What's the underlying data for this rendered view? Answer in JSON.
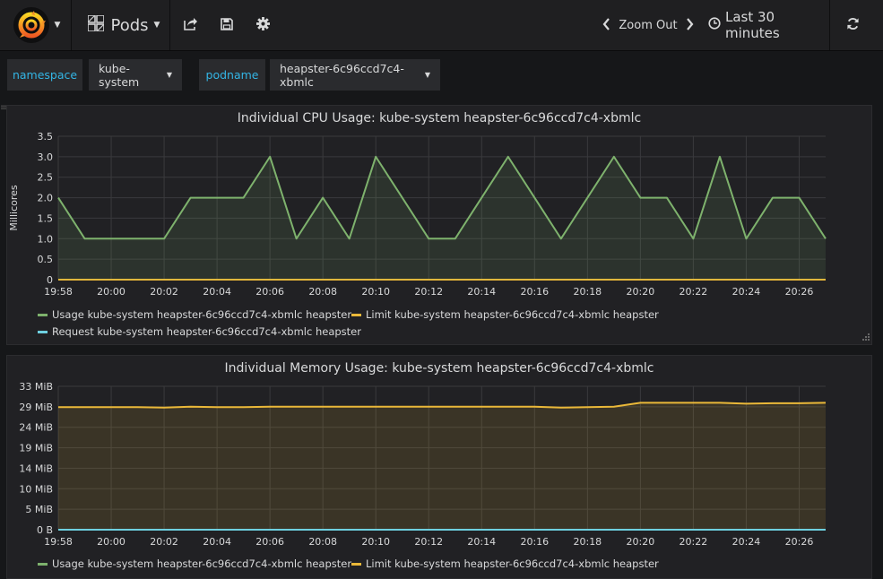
{
  "navbar": {
    "dashboard_title": "Pods",
    "zoom_out_label": "Zoom Out",
    "time_range_label": "Last 30 minutes"
  },
  "icons": {
    "logo": "grafana-logo-icon",
    "dashboard": "grid-icon",
    "share": "share-icon",
    "save": "save-icon",
    "settings": "gear-icon",
    "zoom_prev": "chevron-left-icon",
    "zoom_next": "chevron-right-icon",
    "time": "clock-icon",
    "refresh": "refresh-icon"
  },
  "variables": [
    {
      "label": "namespace",
      "value": "kube-system"
    },
    {
      "label": "podname",
      "value": "heapster-6c96ccd7c4-xbmlc"
    }
  ],
  "colors": {
    "usage": "#7eb26d",
    "limit": "#eab839",
    "request": "#6ed0e0",
    "variable_label": "#33b5e5"
  },
  "panels": [
    {
      "title": "Individual CPU Usage: kube-system heapster-6c96ccd7c4-xbmlc"
    },
    {
      "title": "Individual Memory Usage: kube-system heapster-6c96ccd7c4-xbmlc"
    }
  ],
  "chart_data": [
    {
      "type": "line",
      "title": "Individual CPU Usage: kube-system heapster-6c96ccd7c4-xbmlc",
      "ylabel": "Millicores",
      "xlabel": "",
      "ylim": [
        0,
        3.5
      ],
      "yticks": [
        "0",
        "0.5",
        "1.0",
        "1.5",
        "2.0",
        "2.5",
        "3.0",
        "3.5"
      ],
      "xticks": [
        "19:58",
        "20:00",
        "20:02",
        "20:04",
        "20:06",
        "20:08",
        "20:10",
        "20:12",
        "20:14",
        "20:16",
        "20:18",
        "20:20",
        "20:22",
        "20:24",
        "20:26"
      ],
      "x": [
        "19:58",
        "19:59",
        "20:00",
        "20:01",
        "20:02",
        "20:03",
        "20:04",
        "20:05",
        "20:06",
        "20:07",
        "20:08",
        "20:09",
        "20:10",
        "20:11",
        "20:12",
        "20:13",
        "20:14",
        "20:15",
        "20:16",
        "20:17",
        "20:18",
        "20:19",
        "20:20",
        "20:21",
        "20:22",
        "20:23",
        "20:24",
        "20:25",
        "20:26",
        "20:27"
      ],
      "grid": true,
      "legend_position": "bottom",
      "series": [
        {
          "name": "Usage kube-system heapster-6c96ccd7c4-xbmlc heapster",
          "values": [
            2,
            1,
            1,
            1,
            1,
            2,
            2,
            2,
            3,
            1,
            2,
            1,
            3,
            2,
            1,
            1,
            2,
            3,
            2,
            1,
            2,
            3,
            2,
            2,
            1,
            3,
            1,
            2,
            2,
            1
          ],
          "fill": true
        },
        {
          "name": "Limit kube-system heapster-6c96ccd7c4-xbmlc heapster",
          "values": [
            0,
            0,
            0,
            0,
            0,
            0,
            0,
            0,
            0,
            0,
            0,
            0,
            0,
            0,
            0,
            0,
            0,
            0,
            0,
            0,
            0,
            0,
            0,
            0,
            0,
            0,
            0,
            0,
            0,
            0
          ]
        },
        {
          "name": "Request kube-system heapster-6c96ccd7c4-xbmlc heapster",
          "values": [
            0,
            0,
            0,
            0,
            0,
            0,
            0,
            0,
            0,
            0,
            0,
            0,
            0,
            0,
            0,
            0,
            0,
            0,
            0,
            0,
            0,
            0,
            0,
            0,
            0,
            0,
            0,
            0,
            0,
            0
          ]
        }
      ]
    },
    {
      "type": "line",
      "title": "Individual Memory Usage: kube-system heapster-6c96ccd7c4-xbmlc",
      "xlabel": "",
      "ylabel": "",
      "ylim": [
        0,
        33
      ],
      "yticks": [
        "0 B",
        "5 MiB",
        "10 MiB",
        "14 MiB",
        "19 MiB",
        "24 MiB",
        "29 MiB",
        "33 MiB"
      ],
      "xticks": [
        "19:58",
        "20:00",
        "20:02",
        "20:04",
        "20:06",
        "20:08",
        "20:10",
        "20:12",
        "20:14",
        "20:16",
        "20:18",
        "20:20",
        "20:22",
        "20:24",
        "20:26"
      ],
      "x": [
        "19:58",
        "19:59",
        "20:00",
        "20:01",
        "20:02",
        "20:03",
        "20:04",
        "20:05",
        "20:06",
        "20:07",
        "20:08",
        "20:09",
        "20:10",
        "20:11",
        "20:12",
        "20:13",
        "20:14",
        "20:15",
        "20:16",
        "20:17",
        "20:18",
        "20:19",
        "20:20",
        "20:21",
        "20:22",
        "20:23",
        "20:24",
        "20:25",
        "20:26",
        "20:27"
      ],
      "grid": true,
      "legend_position": "bottom",
      "series": [
        {
          "name": "Usage kube-system heapster-6c96ccd7c4-xbmlc heapster",
          "values": [
            0,
            0,
            0,
            0,
            0,
            0,
            0,
            0,
            0,
            0,
            0,
            0,
            0,
            0,
            0,
            0,
            0,
            0,
            0,
            0,
            0,
            0,
            0,
            0,
            0,
            0,
            0,
            0,
            0,
            0
          ]
        },
        {
          "name": "Limit kube-system heapster-6c96ccd7c4-xbmlc heapster",
          "values": [
            28.2,
            28.2,
            28.2,
            28.2,
            28.1,
            28.3,
            28.2,
            28.2,
            28.3,
            28.3,
            28.3,
            28.3,
            28.3,
            28.3,
            28.3,
            28.3,
            28.3,
            28.3,
            28.3,
            28.1,
            28.2,
            28.3,
            29.2,
            29.2,
            29.2,
            29.2,
            29.0,
            29.1,
            29.1,
            29.2
          ],
          "fill": true
        }
      ]
    }
  ]
}
